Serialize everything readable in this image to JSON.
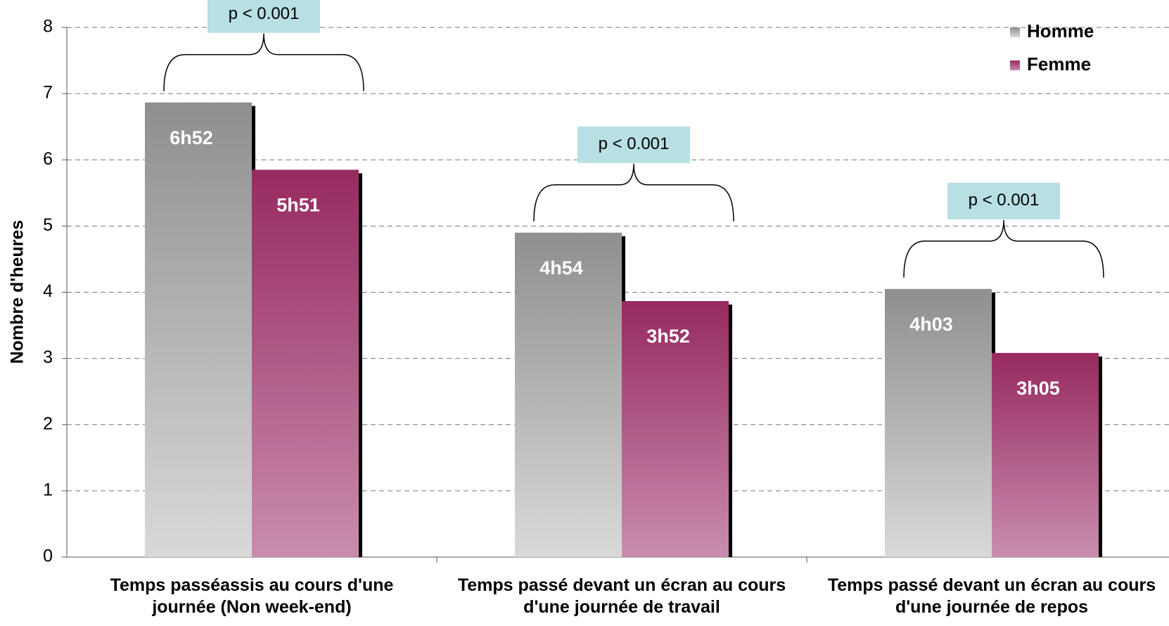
{
  "chart_data": {
    "type": "bar",
    "y_label": "Nombre d'heures",
    "categories": [
      "Temps passéassis au cours d'une journée (Non week-end)",
      "Temps passé devant un écran au cours d'une journée de travail",
      "Temps passé devant un écran au cours d'une journée de repos"
    ],
    "series": [
      {
        "name": "Homme",
        "color": "#a0a0a0",
        "values": [
          6.867,
          4.9,
          4.05
        ],
        "value_labels": [
          "6h52",
          "4h54",
          "4h03"
        ]
      },
      {
        "name": "Femme",
        "color": "#9e3468",
        "values": [
          5.85,
          3.867,
          3.083
        ],
        "value_labels": [
          "5h51",
          "3h52",
          "3h05"
        ]
      }
    ],
    "annotations": [
      "p < 0.001",
      "p < 0.001",
      "p < 0.001"
    ],
    "ylim": [
      0,
      8
    ],
    "yticks": [
      0,
      1,
      2,
      3,
      4,
      5,
      6,
      7,
      8
    ],
    "grid": true,
    "legend": "top-right"
  }
}
